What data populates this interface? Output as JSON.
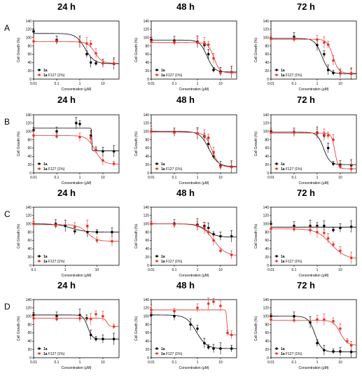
{
  "figure": {
    "row_labels": [
      "A",
      "B",
      "C",
      "D"
    ],
    "time_labels": [
      "24 h",
      "48 h",
      "72 h"
    ],
    "axis_x_label": "Concentration (μM)",
    "axis_y_label": "Cell Growth (%)",
    "legend_entries": [
      {
        "marker": "1a",
        "suffix": "",
        "color": "#000000"
      },
      {
        "marker": "1a",
        "suffix": " F127 (1%)",
        "color": "#e8312a"
      }
    ]
  },
  "chart_data": [
    {
      "type": "scatter",
      "title": "24 h",
      "row": "A",
      "col": 0,
      "xscale": "log",
      "xlim": [
        0.01,
        50
      ],
      "ylim": [
        0,
        140
      ],
      "x_ticks": [
        "0.01",
        "0.1",
        "1",
        "10"
      ],
      "y_ticks": [
        "0",
        "20",
        "40",
        "60",
        "80",
        "100",
        "120",
        "140"
      ],
      "xlabel": "Concentration (μM)",
      "ylabel": "Cell Growth (%)",
      "legend_position": "bottom-left",
      "series": [
        {
          "name": "1a",
          "color": "#000000",
          "x": [
            0.01,
            0.1,
            1,
            2,
            3,
            5,
            10,
            30
          ],
          "y": [
            115,
            94,
            90,
            60,
            40,
            38,
            38,
            37
          ],
          "fit": {
            "top": 110,
            "bottom": 37,
            "ec50": 1.7,
            "slope": 2.2
          }
        },
        {
          "name": "1a F127 (1%)",
          "color": "#e8312a",
          "x": [
            0.01,
            0.1,
            1,
            2,
            3,
            5,
            10,
            30
          ],
          "y": [
            91,
            91,
            90,
            86,
            85,
            62,
            38,
            38
          ],
          "fit": {
            "top": 90,
            "bottom": 38,
            "ec50": 4.5,
            "slope": 2.8
          }
        }
      ]
    },
    {
      "type": "scatter",
      "title": "48 h",
      "row": "A",
      "col": 1,
      "xscale": "log",
      "xlim": [
        0.01,
        50
      ],
      "ylim": [
        0,
        140
      ],
      "x_ticks": [
        "0.01",
        "0.1",
        "1",
        "10"
      ],
      "y_ticks": [
        "0",
        "20",
        "40",
        "60",
        "80",
        "100",
        "120",
        "140"
      ],
      "xlabel": "Concentration (μM)",
      "ylabel": "Cell Growth (%)",
      "legend_position": "bottom-left",
      "series": [
        {
          "name": "1a",
          "color": "#000000",
          "x": [
            0.01,
            0.1,
            1,
            2,
            3,
            5,
            10,
            30
          ],
          "y": [
            95,
            93,
            90,
            82,
            60,
            22,
            18,
            17
          ],
          "fit": {
            "top": 94,
            "bottom": 17,
            "ec50": 2.6,
            "slope": 2.8
          }
        },
        {
          "name": "1a F127 (1%)",
          "color": "#e8312a",
          "x": [
            0.01,
            0.1,
            1,
            2,
            3,
            5,
            10,
            30
          ],
          "y": [
            90,
            88,
            88,
            86,
            83,
            50,
            15,
            16
          ],
          "fit": {
            "top": 88,
            "bottom": 15,
            "ec50": 5.2,
            "slope": 3.5
          }
        }
      ]
    },
    {
      "type": "scatter",
      "title": "72 h",
      "row": "A",
      "col": 2,
      "xscale": "log",
      "xlim": [
        0.01,
        50
      ],
      "ylim": [
        0,
        140
      ],
      "x_ticks": [
        "0.01",
        "0.1",
        "1",
        "10"
      ],
      "y_ticks": [
        "0",
        "20",
        "40",
        "60",
        "80",
        "100",
        "120",
        "140"
      ],
      "xlabel": "Concentration (μM)",
      "ylabel": "Cell Growth (%)",
      "legend_position": "bottom-left",
      "series": [
        {
          "name": "1a",
          "color": "#000000",
          "x": [
            0.01,
            0.1,
            1,
            2,
            3,
            5,
            10,
            30
          ],
          "y": [
            98,
            102,
            82,
            60,
            22,
            15,
            14,
            13
          ],
          "fit": {
            "top": 98,
            "bottom": 13,
            "ec50": 1.6,
            "slope": 2.8
          }
        },
        {
          "name": "1a F127 (1%)",
          "color": "#e8312a",
          "x": [
            0.01,
            0.1,
            1,
            2,
            3,
            5,
            10,
            30
          ],
          "y": [
            97,
            96,
            95,
            88,
            83,
            45,
            15,
            14
          ],
          "fit": {
            "top": 96,
            "bottom": 14,
            "ec50": 4.8,
            "slope": 3.5
          }
        }
      ]
    },
    {
      "type": "scatter",
      "title": "24 h",
      "row": "B",
      "col": 0,
      "xscale": "log",
      "xlim": [
        0.01,
        50
      ],
      "ylim": [
        0,
        140
      ],
      "x_ticks": [
        "0.01",
        "0.1",
        "1",
        "10"
      ],
      "y_ticks": [
        "0",
        "20",
        "40",
        "60",
        "80",
        "100",
        "120",
        "140"
      ],
      "xlabel": "Concentration (μM)",
      "ylabel": "Cell Growth (%)",
      "legend_position": "bottom-left",
      "series": [
        {
          "name": "1a",
          "color": "#000000",
          "x": [
            0.01,
            0.1,
            0.7,
            1,
            3,
            5,
            10,
            30
          ],
          "y": [
            103,
            100,
            120,
            118,
            90,
            55,
            52,
            52
          ],
          "fit": {
            "top": 108,
            "bottom": 53,
            "ec50": 3.3,
            "slope": 60
          }
        },
        {
          "name": "1a F127 (1%)",
          "color": "#e8312a",
          "x": [
            0.01,
            0.1,
            1,
            3,
            5,
            10,
            30
          ],
          "y": [
            90,
            88,
            86,
            84,
            55,
            30,
            22
          ],
          "fit": {
            "top": 90,
            "bottom": 21,
            "ec50": 4.5,
            "slope": 2.5
          }
        }
      ]
    },
    {
      "type": "scatter",
      "title": "48 h",
      "row": "B",
      "col": 1,
      "xscale": "log",
      "xlim": [
        0.01,
        50
      ],
      "ylim": [
        0,
        140
      ],
      "x_ticks": [
        "0.01",
        "0.1",
        "1",
        "10"
      ],
      "y_ticks": [
        "0",
        "20",
        "40",
        "60",
        "80",
        "100",
        "120",
        "140"
      ],
      "xlabel": "Concentration (μM)",
      "ylabel": "Cell Growth (%)",
      "legend_position": "bottom-left",
      "series": [
        {
          "name": "1a",
          "color": "#000000",
          "x": [
            0.01,
            0.1,
            1,
            2,
            3,
            5,
            10,
            30
          ],
          "y": [
            100,
            98,
            95,
            88,
            70,
            40,
            18,
            15
          ],
          "fit": {
            "top": 100,
            "bottom": 15,
            "ec50": 3.2,
            "slope": 2.2
          }
        },
        {
          "name": "1a F127 (1%)",
          "color": "#e8312a",
          "x": [
            0.01,
            0.1,
            1,
            2,
            3,
            5,
            10,
            30
          ],
          "y": [
            100,
            97,
            95,
            90,
            85,
            50,
            15,
            14
          ],
          "fit": {
            "top": 98,
            "bottom": 14,
            "ec50": 4.2,
            "slope": 2.8
          }
        }
      ]
    },
    {
      "type": "scatter",
      "title": "72 h",
      "row": "B",
      "col": 2,
      "xscale": "log",
      "xlim": [
        0.01,
        50
      ],
      "ylim": [
        0,
        140
      ],
      "x_ticks": [
        "0.01",
        "0.1",
        "1",
        "10"
      ],
      "y_ticks": [
        "0",
        "20",
        "40",
        "60",
        "80",
        "100",
        "120",
        "140"
      ],
      "xlabel": "Concentration (μM)",
      "ylabel": "Cell Growth (%)",
      "legend_position": "bottom-left",
      "series": [
        {
          "name": "1a",
          "color": "#000000",
          "x": [
            0.01,
            0.1,
            1,
            2,
            3,
            5,
            10,
            30
          ],
          "y": [
            100,
            98,
            97,
            90,
            60,
            22,
            20,
            18
          ],
          "fit": {
            "top": 98,
            "bottom": 20,
            "ec50": 1.9,
            "slope": 3.2
          }
        },
        {
          "name": "1a F127 (1%)",
          "color": "#e8312a",
          "x": [
            0.01,
            0.1,
            1,
            2,
            3,
            5,
            10,
            30
          ],
          "y": [
            97,
            97,
            95,
            92,
            90,
            80,
            15,
            10
          ],
          "fit": {
            "top": 96,
            "bottom": 10,
            "ec50": 5.8,
            "slope": 6
          }
        }
      ]
    },
    {
      "type": "scatter",
      "title": "24 h",
      "row": "C",
      "col": 0,
      "xscale": "log",
      "xlim": [
        0.1,
        50
      ],
      "ylim": [
        0,
        140
      ],
      "x_ticks": [
        "0.1",
        "1",
        "10"
      ],
      "y_ticks": [
        "0",
        "20",
        "40",
        "60",
        "80",
        "100",
        "120",
        "140"
      ],
      "xlabel": "Concentration (μM)",
      "ylabel": "Cell Growth (%)",
      "legend_position": "bottom-left",
      "series": [
        {
          "name": "1a",
          "color": "#000000",
          "x": [
            0.1,
            0.5,
            1,
            2,
            5,
            10,
            30
          ],
          "y": [
            100,
            100,
            95,
            82,
            80,
            80,
            80
          ],
          "fit": {
            "top": 100,
            "bottom": 80,
            "ec50": 1.5,
            "slope": 2
          }
        },
        {
          "name": "1a F127 (1%)",
          "color": "#e8312a",
          "x": [
            0.1,
            0.5,
            2,
            5,
            10,
            30
          ],
          "y": [
            100,
            95,
            93,
            95,
            60,
            58
          ],
          "fit": {
            "top": 98,
            "bottom": 58,
            "ec50": 5,
            "slope": 3
          }
        }
      ]
    },
    {
      "type": "scatter",
      "title": "48 h",
      "row": "C",
      "col": 1,
      "xscale": "log",
      "xlim": [
        0.01,
        50
      ],
      "ylim": [
        0,
        140
      ],
      "x_ticks": [
        "0.01",
        "0.1",
        "1",
        "10"
      ],
      "y_ticks": [
        "0",
        "20",
        "40",
        "60",
        "80",
        "100",
        "120",
        "140"
      ],
      "xlabel": "Concentration (μM)",
      "ylabel": "Cell Growth (%)",
      "legend_position": "bottom-left",
      "series": [
        {
          "name": "1a",
          "color": "#000000",
          "x": [
            0.01,
            0.1,
            1,
            2,
            3,
            5,
            10,
            30
          ],
          "y": [
            100,
            100,
            98,
            95,
            90,
            75,
            70,
            70
          ],
          "fit": {
            "top": 100,
            "bottom": 68,
            "ec50": 2.5,
            "slope": 2
          }
        },
        {
          "name": "1a F127 (1%)",
          "color": "#e8312a",
          "x": [
            0.01,
            0.1,
            1,
            2,
            3,
            5,
            10,
            30
          ],
          "y": [
            100,
            98,
            95,
            90,
            80,
            60,
            35,
            25
          ],
          "fit": {
            "top": 100,
            "bottom": 22,
            "ec50": 5,
            "slope": 1.6
          }
        }
      ]
    },
    {
      "type": "scatter",
      "title": "72 h",
      "row": "C",
      "col": 2,
      "xscale": "log",
      "xlim": [
        0.01,
        50
      ],
      "ylim": [
        0,
        140
      ],
      "x_ticks": [
        "0.01",
        "0.1",
        "1",
        "10"
      ],
      "y_ticks": [
        "0",
        "20",
        "40",
        "60",
        "80",
        "100",
        "120",
        "140"
      ],
      "xlabel": "Concentration (μM)",
      "ylabel": "Cell Growth (%)",
      "legend_position": "bottom-left",
      "series": [
        {
          "name": "1a",
          "color": "#000000",
          "x": [
            0.01,
            0.1,
            0.5,
            1,
            2,
            5,
            10,
            30
          ],
          "y": [
            100,
            95,
            95,
            95,
            95,
            85,
            90,
            93
          ],
          "fit": {
            "top": 92,
            "bottom": 92,
            "ec50": 1,
            "slope": 1
          }
        },
        {
          "name": "1a F127 (1%)",
          "color": "#e8312a",
          "x": [
            0.01,
            0.1,
            0.5,
            1,
            2,
            3,
            5,
            10,
            30
          ],
          "y": [
            88,
            87,
            85,
            80,
            78,
            65,
            50,
            35,
            18
          ],
          "fit": {
            "top": 88,
            "bottom": 15,
            "ec50": 4,
            "slope": 1.4
          }
        }
      ]
    },
    {
      "type": "scatter",
      "title": "24 h",
      "row": "D",
      "col": 0,
      "xscale": "log",
      "xlim": [
        0.01,
        50
      ],
      "ylim": [
        0,
        140
      ],
      "x_ticks": [
        "0.01",
        "0.1",
        "1",
        "10"
      ],
      "y_ticks": [
        "0",
        "20",
        "40",
        "60",
        "80",
        "100",
        "120",
        "140"
      ],
      "xlabel": "Concentration (μM)",
      "ylabel": "Cell Growth (%)",
      "legend_position": "bottom-left",
      "series": [
        {
          "name": "1a",
          "color": "#000000",
          "x": [
            0.01,
            0.1,
            1,
            2,
            3,
            5,
            10,
            30
          ],
          "y": [
            103,
            100,
            103,
            95,
            55,
            45,
            45,
            45
          ],
          "fit": {
            "top": 103,
            "bottom": 45,
            "ec50": 2.2,
            "slope": 4.5
          }
        },
        {
          "name": "1a F127 (1%)",
          "color": "#e8312a",
          "x": [
            0.01,
            0.1,
            1,
            3,
            5,
            10,
            30
          ],
          "y": [
            95,
            93,
            95,
            93,
            105,
            100,
            75
          ],
          "fit": {
            "top": 95,
            "bottom": 75,
            "ec50": 15,
            "slope": 8
          }
        }
      ]
    },
    {
      "type": "scatter",
      "title": "48 h",
      "row": "D",
      "col": 1,
      "xscale": "log",
      "xlim": [
        0.01,
        50
      ],
      "ylim": [
        0,
        140
      ],
      "x_ticks": [
        "0.01",
        "0.1",
        "1",
        "10"
      ],
      "y_ticks": [
        "0",
        "20",
        "40",
        "60",
        "80",
        "100",
        "120",
        "140"
      ],
      "xlabel": "Concentration (μM)",
      "ylabel": "Cell Growth (%)",
      "legend_position": "bottom-left",
      "series": [
        {
          "name": "1a",
          "color": "#000000",
          "x": [
            0.01,
            0.1,
            0.5,
            1,
            2,
            3,
            5,
            10,
            30
          ],
          "y": [
            103,
            100,
            80,
            70,
            35,
            25,
            22,
            22,
            22
          ],
          "fit": {
            "top": 103,
            "bottom": 22,
            "ec50": 0.9,
            "slope": 2
          }
        },
        {
          "name": "1a F127 (1%)",
          "color": "#e8312a",
          "x": [
            0.01,
            0.1,
            1,
            3,
            5,
            10,
            20,
            30
          ],
          "y": [
            115,
            113,
            120,
            130,
            135,
            125,
            60,
            55
          ],
          "fit": {
            "top": 115,
            "bottom": 55,
            "ec50": 19,
            "slope": 25
          }
        }
      ]
    },
    {
      "type": "scatter",
      "title": "72 h",
      "row": "D",
      "col": 2,
      "xscale": "log",
      "xlim": [
        0.01,
        50
      ],
      "ylim": [
        0,
        140
      ],
      "x_ticks": [
        "0.01",
        "0.1",
        "1",
        "10"
      ],
      "y_ticks": [
        "0",
        "20",
        "40",
        "60",
        "80",
        "100",
        "120",
        "140"
      ],
      "xlabel": "Concentration (μM)",
      "ylabel": "Cell Growth (%)",
      "legend_position": "bottom-left",
      "series": [
        {
          "name": "1a",
          "color": "#000000",
          "x": [
            0.01,
            0.1,
            0.5,
            1,
            2,
            5,
            10,
            30
          ],
          "y": [
            100,
            100,
            85,
            35,
            18,
            15,
            15,
            14
          ],
          "fit": {
            "top": 100,
            "bottom": 14,
            "ec50": 0.8,
            "slope": 3
          }
        },
        {
          "name": "1a F127 (1%)",
          "color": "#e8312a",
          "x": [
            0.01,
            0.1,
            1,
            2,
            5,
            10,
            20,
            30
          ],
          "y": [
            92,
            90,
            92,
            92,
            88,
            70,
            40,
            30
          ],
          "fit": {
            "top": 90,
            "bottom": 30,
            "ec50": 10,
            "slope": 3
          }
        }
      ]
    }
  ]
}
